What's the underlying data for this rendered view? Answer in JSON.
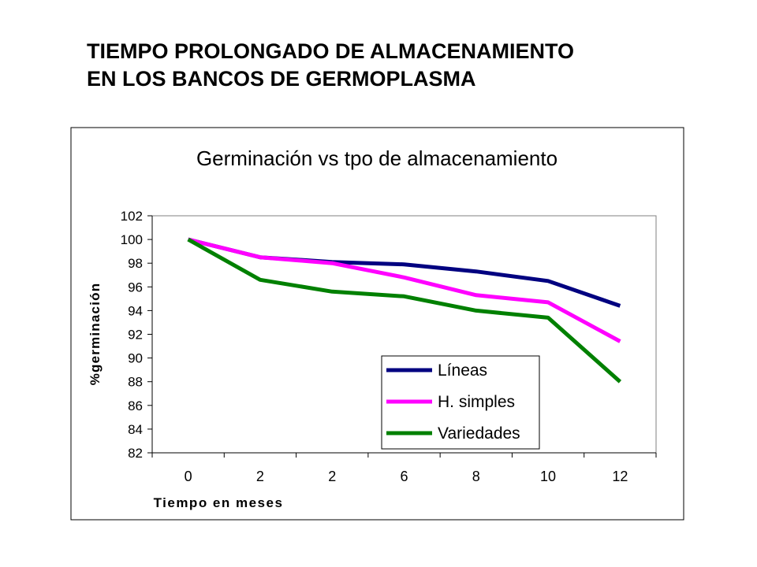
{
  "slide": {
    "title_line1": "TIEMPO PROLONGADO DE ALMACENAMIENTO",
    "title_line2": "EN LOS BANCOS DE GERMOPLASMA"
  },
  "chart_data": {
    "type": "line",
    "title": "Germinación vs tpo de almacenamiento",
    "xlabel": "Tiempo en meses",
    "ylabel": "%germinación",
    "categories": [
      "0",
      "2",
      "2",
      "6",
      "8",
      "10",
      "12"
    ],
    "ylim": [
      82,
      102
    ],
    "yticks": [
      82,
      84,
      86,
      88,
      90,
      92,
      94,
      96,
      98,
      100,
      102
    ],
    "grid": false,
    "legend_position": "bottom-right",
    "series": [
      {
        "name": "Líneas",
        "color": "#000080",
        "values": [
          100,
          98.5,
          98.1,
          97.9,
          97.3,
          96.5,
          94.4
        ]
      },
      {
        "name": "H. simples",
        "color": "#FF00FF",
        "values": [
          100,
          98.5,
          98.0,
          96.8,
          95.3,
          94.7,
          91.4
        ]
      },
      {
        "name": "Variedades",
        "color": "#008000",
        "values": [
          100,
          96.6,
          95.6,
          95.2,
          94.0,
          93.4,
          88.0
        ]
      }
    ]
  }
}
